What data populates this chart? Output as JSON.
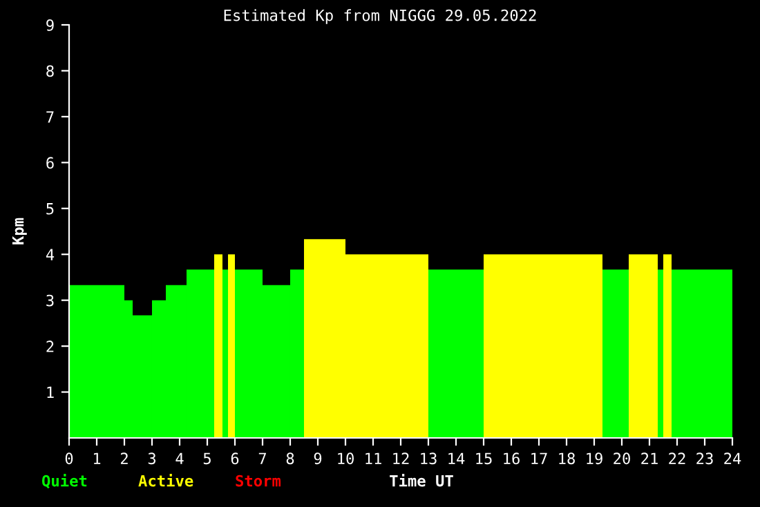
{
  "chart_data": {
    "type": "histogram",
    "title": "Estimated Kp from NIGGG 29.05.2022",
    "xlabel": "Time UT",
    "ylabel": "Kpm",
    "bins": [
      0,
      2,
      2.3,
      3,
      3.5,
      4.25,
      5.25,
      5.55,
      5.75,
      6,
      7,
      8,
      8.5,
      10,
      13,
      15,
      19.3,
      20.25,
      21.3,
      21.5,
      21.8,
      24
    ],
    "series": [
      {
        "name": "Quiet",
        "color": "#00ff00",
        "values": [
          3.33,
          3.0,
          2.67,
          3.0,
          3.33,
          3.67,
          null,
          3.67,
          null,
          3.67,
          3.33,
          3.67,
          null,
          null,
          3.67,
          null,
          3.67,
          null,
          3.67,
          null,
          3.67
        ]
      },
      {
        "name": "Active",
        "color": "#ffff00",
        "values": [
          null,
          null,
          null,
          null,
          null,
          null,
          4.0,
          null,
          4.0,
          null,
          null,
          null,
          4.33,
          4.0,
          null,
          4.0,
          null,
          4.0,
          null,
          4.0,
          null
        ]
      }
    ],
    "annotations": [
      "Storm"
    ],
    "xlim": [
      0,
      24
    ],
    "xticks": [
      0,
      1,
      2,
      3,
      4,
      5,
      6,
      7,
      8,
      9,
      10,
      11,
      12,
      13,
      14,
      15,
      16,
      17,
      18,
      19,
      20,
      21,
      22,
      23,
      24
    ],
    "ylim": [
      0,
      9
    ],
    "yticks": [
      1,
      2,
      3,
      4,
      5,
      6,
      7,
      8,
      9
    ],
    "grid": false,
    "legend": "bottom"
  }
}
